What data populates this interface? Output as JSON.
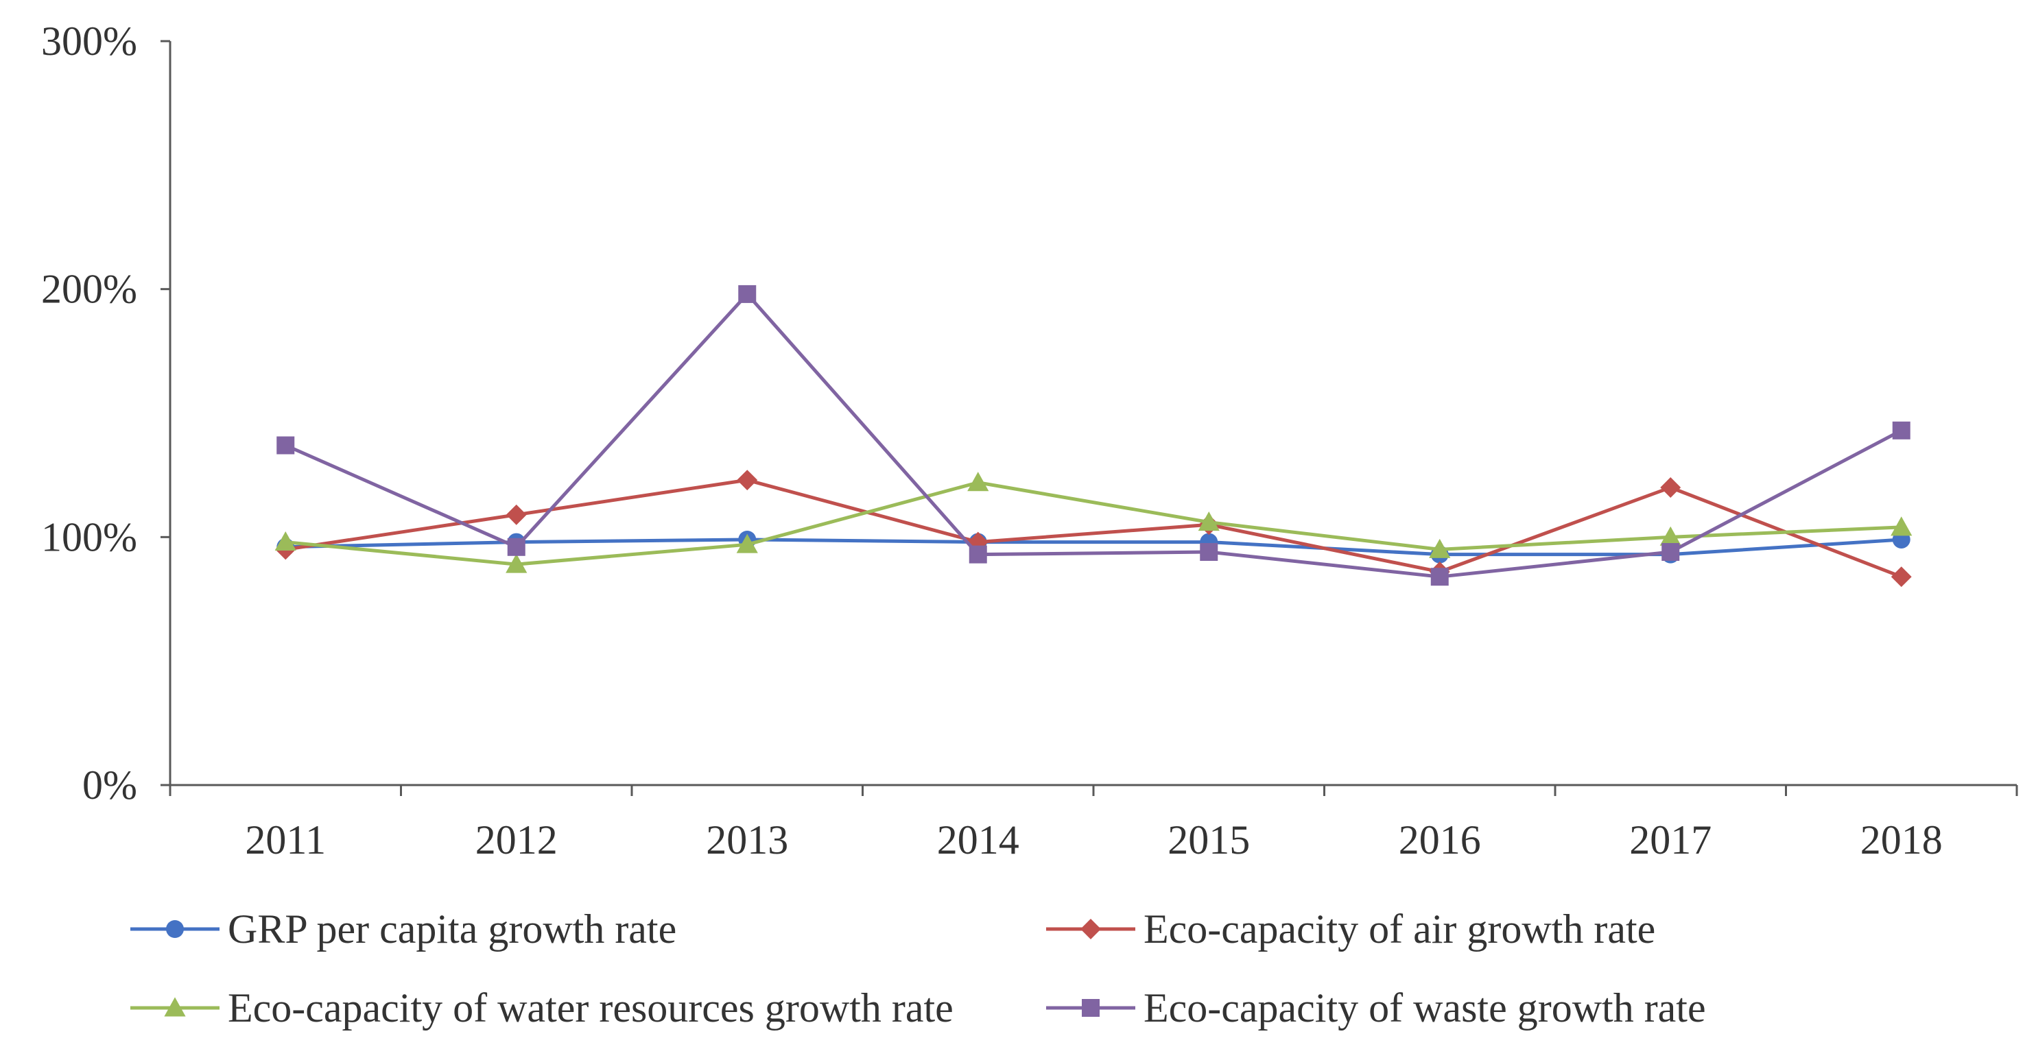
{
  "chart_data": {
    "type": "line",
    "title": "",
    "xlabel": "",
    "ylabel": "",
    "categories": [
      "2011",
      "2012",
      "2013",
      "2014",
      "2015",
      "2016",
      "2017",
      "2018"
    ],
    "ylim": [
      0,
      300
    ],
    "yticks": [
      0,
      100,
      200,
      300
    ],
    "ytick_labels": [
      "0%",
      "100%",
      "200%",
      "300%"
    ],
    "grid": false,
    "legend_position": "bottom",
    "series": [
      {
        "name": "GRP per capita growth rate",
        "color": "#4472C4",
        "marker": "circle",
        "values": [
          96,
          98,
          99,
          98,
          98,
          93,
          93,
          99
        ]
      },
      {
        "name": "Eco-capacity of air growth rate",
        "color": "#C0504D",
        "marker": "diamond",
        "values": [
          95,
          109,
          123,
          98,
          105,
          86,
          120,
          84
        ]
      },
      {
        "name": "Eco-capacity of water resources growth rate",
        "color": "#9BBB59",
        "marker": "triangle",
        "values": [
          98,
          89,
          97,
          122,
          106,
          95,
          100,
          104
        ]
      },
      {
        "name": "Eco-capacity of waste growth rate",
        "color": "#8064A2",
        "marker": "square",
        "values": [
          137,
          96,
          198,
          93,
          94,
          84,
          94,
          143
        ]
      }
    ]
  }
}
